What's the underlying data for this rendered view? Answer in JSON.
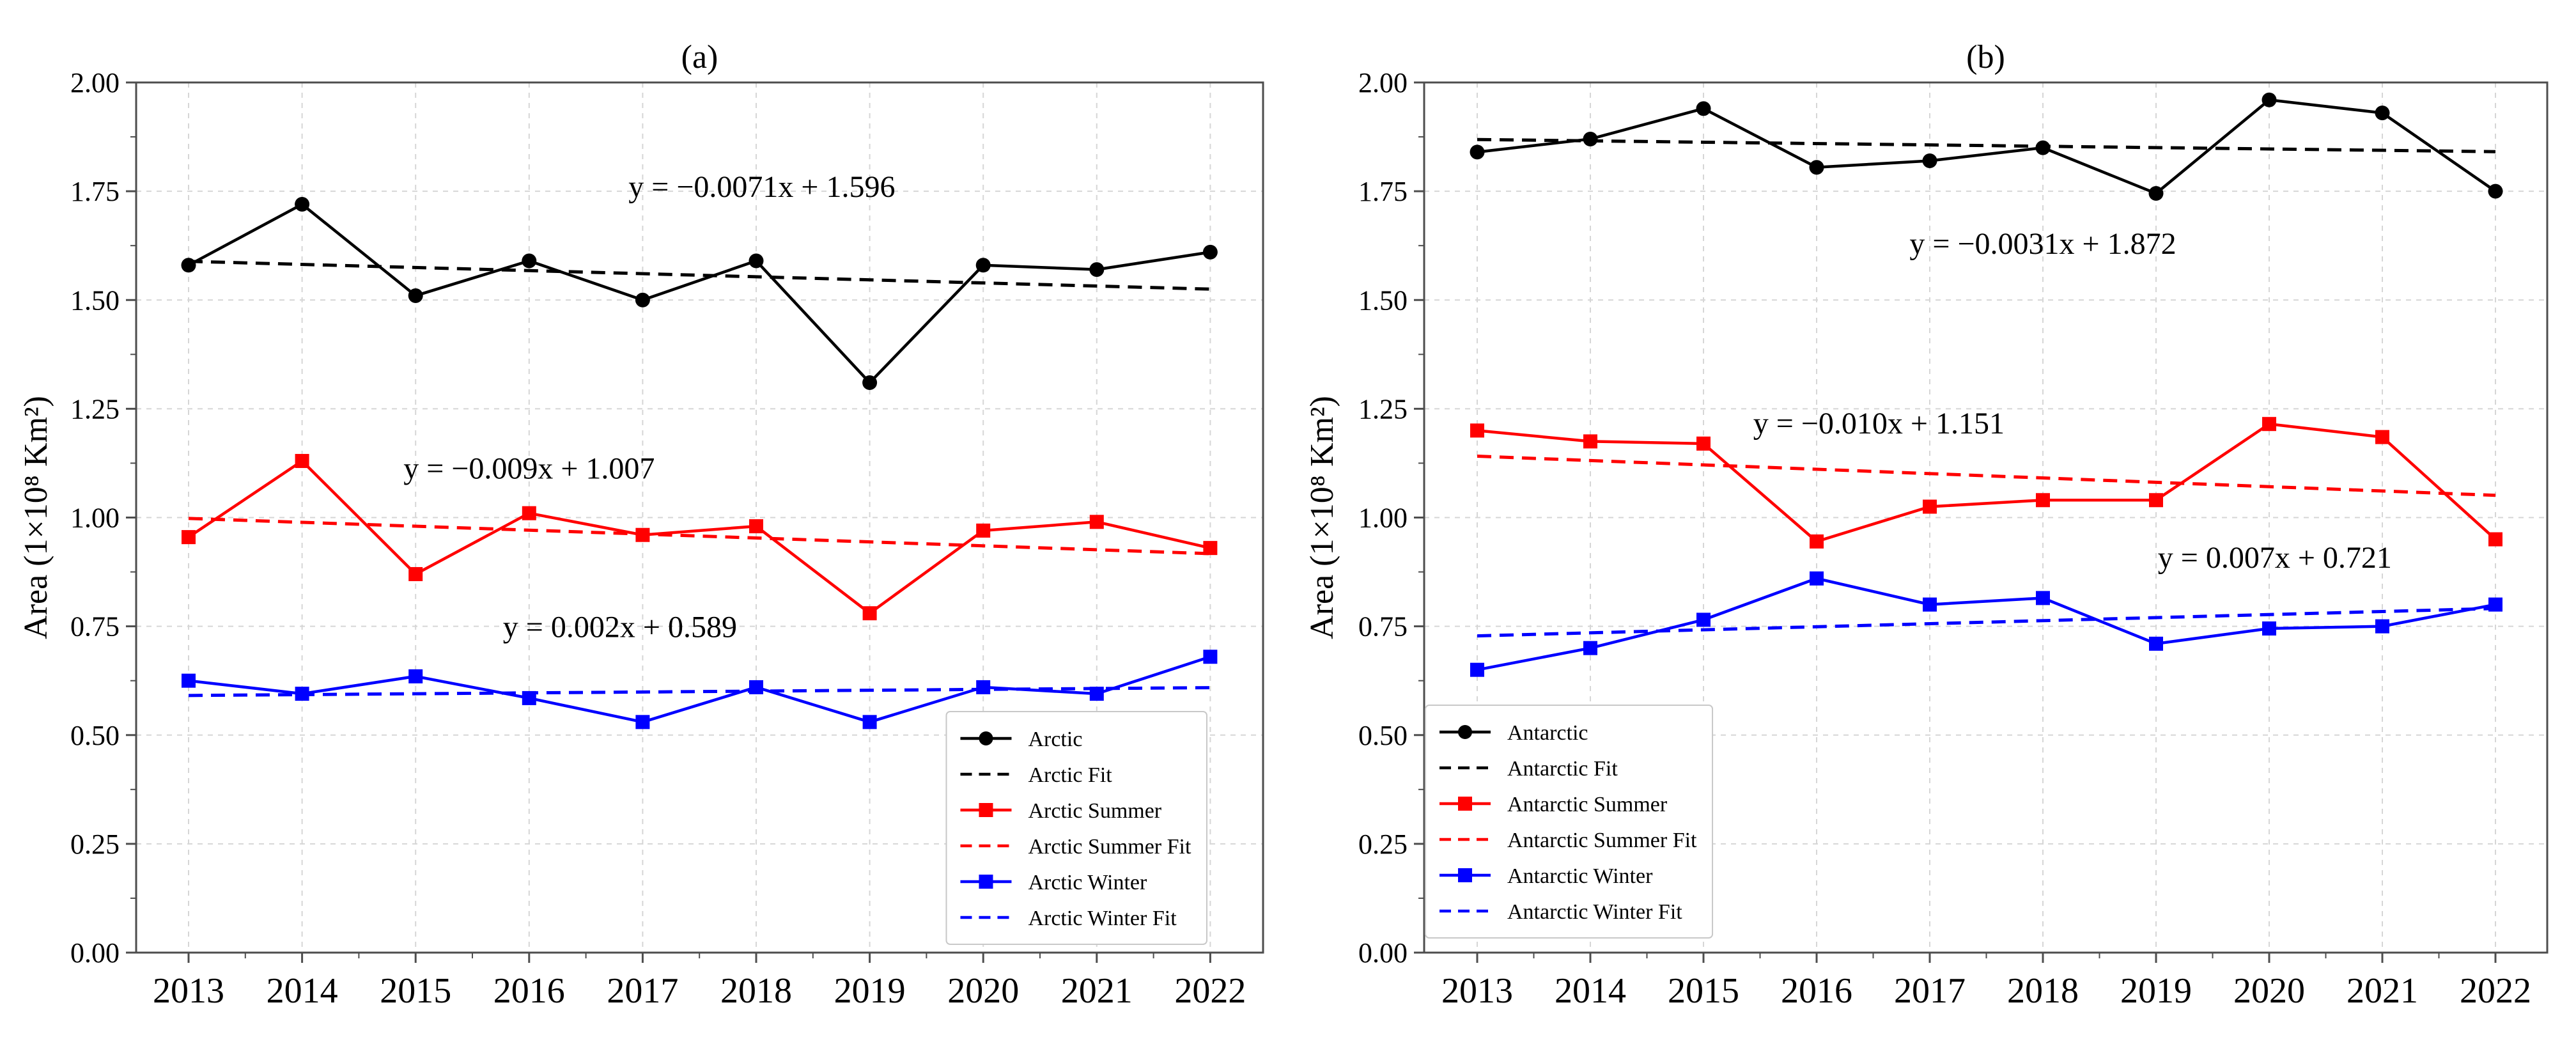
{
  "figure": {
    "background": "#ffffff",
    "axis_color": "#4d4d4d",
    "grid_color": "#d6d6d6",
    "text_color": "#000000",
    "series_colors": {
      "annual": "#000000",
      "summer": "#ff0000",
      "winter": "#0000ff"
    }
  },
  "chart_data": [
    {
      "type": "line",
      "title": "(a)",
      "ylabel": "Area (1×10⁸ Km²)",
      "x": [
        2013,
        2014,
        2015,
        2016,
        2017,
        2018,
        2019,
        2020,
        2021,
        2022
      ],
      "ylim": [
        0,
        2
      ],
      "yticks": [
        0,
        0.25,
        0.5,
        0.75,
        1,
        1.25,
        1.5,
        1.75,
        2
      ],
      "ytick_labels": [
        "0.00",
        "0.25",
        "0.50",
        "0.75",
        "1.00",
        "1.25",
        "1.50",
        "1.75",
        "2.00"
      ],
      "grid": true,
      "legend_position": "lower right",
      "series": [
        {
          "name": "Arctic",
          "color": "#000000",
          "marker": "circle",
          "line": "solid",
          "values": [
            1.58,
            1.72,
            1.51,
            1.59,
            1.5,
            1.59,
            1.31,
            1.58,
            1.57,
            1.61
          ]
        },
        {
          "name": "Arctic Fit",
          "color": "#000000",
          "marker": "none",
          "line": "dashed",
          "fit": {
            "slope": -0.0071,
            "intercept": 1.596
          },
          "equation": {
            "text": "y = −0.0071x + 1.596",
            "x": 2018.05,
            "y": 1.737
          }
        },
        {
          "name": "Arctic Summer",
          "color": "#ff0000",
          "marker": "square",
          "line": "solid",
          "values": [
            0.955,
            1.13,
            0.87,
            1.01,
            0.96,
            0.98,
            0.78,
            0.97,
            0.99,
            0.93
          ]
        },
        {
          "name": "Arctic Summer Fit",
          "color": "#ff0000",
          "marker": "none",
          "line": "dashed",
          "fit": {
            "slope": -0.009,
            "intercept": 1.007
          },
          "equation": {
            "text": "y = −0.009x + 1.007",
            "x": 2016.0,
            "y": 1.09
          }
        },
        {
          "name": "Arctic Winter",
          "color": "#0000ff",
          "marker": "square",
          "line": "solid",
          "values": [
            0.625,
            0.595,
            0.635,
            0.585,
            0.53,
            0.61,
            0.53,
            0.61,
            0.595,
            0.68
          ]
        },
        {
          "name": "Arctic Winter Fit",
          "color": "#0000ff",
          "marker": "none",
          "line": "dashed",
          "fit": {
            "slope": 0.002,
            "intercept": 0.589
          },
          "equation": {
            "text": "y = 0.002x + 0.589",
            "x": 2016.8,
            "y": 0.725
          }
        }
      ]
    },
    {
      "type": "line",
      "title": "(b)",
      "ylabel": "Area (1×10⁸ Km²)",
      "x": [
        2013,
        2014,
        2015,
        2016,
        2017,
        2018,
        2019,
        2020,
        2021,
        2022
      ],
      "ylim": [
        0,
        2
      ],
      "yticks": [
        0,
        0.25,
        0.5,
        0.75,
        1,
        1.25,
        1.5,
        1.75,
        2
      ],
      "ytick_labels": [
        "0.00",
        "0.25",
        "0.50",
        "0.75",
        "1.00",
        "1.25",
        "1.50",
        "1.75",
        "2.00"
      ],
      "grid": true,
      "legend_position": "lower left",
      "series": [
        {
          "name": "Antarctic",
          "color": "#000000",
          "marker": "circle",
          "line": "solid",
          "values": [
            1.84,
            1.87,
            1.94,
            1.805,
            1.82,
            1.85,
            1.745,
            1.96,
            1.93,
            1.75
          ]
        },
        {
          "name": "Antarctic Fit",
          "color": "#000000",
          "marker": "none",
          "line": "dashed",
          "fit": {
            "slope": -0.0031,
            "intercept": 1.872
          },
          "equation": {
            "text": "y = −0.0031x + 1.872",
            "x": 2018.0,
            "y": 1.606
          }
        },
        {
          "name": "Antarctic Summer",
          "color": "#ff0000",
          "marker": "square",
          "line": "solid",
          "values": [
            1.2,
            1.175,
            1.17,
            0.945,
            1.025,
            1.04,
            1.04,
            1.215,
            1.185,
            0.95
          ]
        },
        {
          "name": "Antarctic Summer Fit",
          "color": "#ff0000",
          "marker": "none",
          "line": "dashed",
          "fit": {
            "slope": -0.01,
            "intercept": 1.151
          },
          "equation": {
            "text": "y = −0.010x + 1.151",
            "x": 2016.55,
            "y": 1.193
          }
        },
        {
          "name": "Antarctic Winter",
          "color": "#0000ff",
          "marker": "square",
          "line": "solid",
          "values": [
            0.65,
            0.7,
            0.765,
            0.86,
            0.8,
            0.815,
            0.71,
            0.745,
            0.75,
            0.8
          ]
        },
        {
          "name": "Antarctic Winter Fit",
          "color": "#0000ff",
          "marker": "none",
          "line": "dashed",
          "fit": {
            "slope": 0.007,
            "intercept": 0.721
          },
          "equation": {
            "text": "y = 0.007x + 0.721",
            "x": 2020.05,
            "y": 0.885
          }
        }
      ]
    }
  ]
}
